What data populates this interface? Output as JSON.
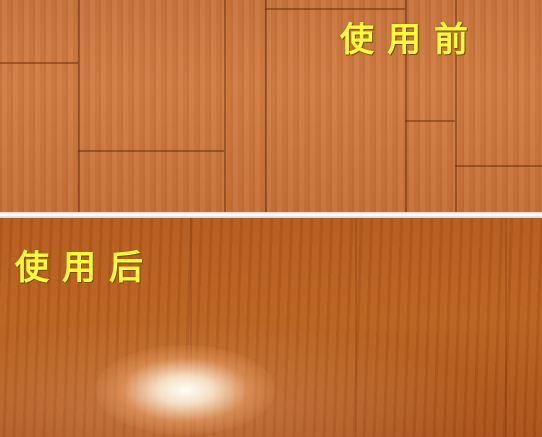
{
  "captions": {
    "before": "使用前",
    "after": "使用后"
  },
  "colors": {
    "caption": "#fffb3a",
    "floor_before": "#c7733c",
    "floor_after": "#b45a1e",
    "divider": "#ffffff"
  }
}
